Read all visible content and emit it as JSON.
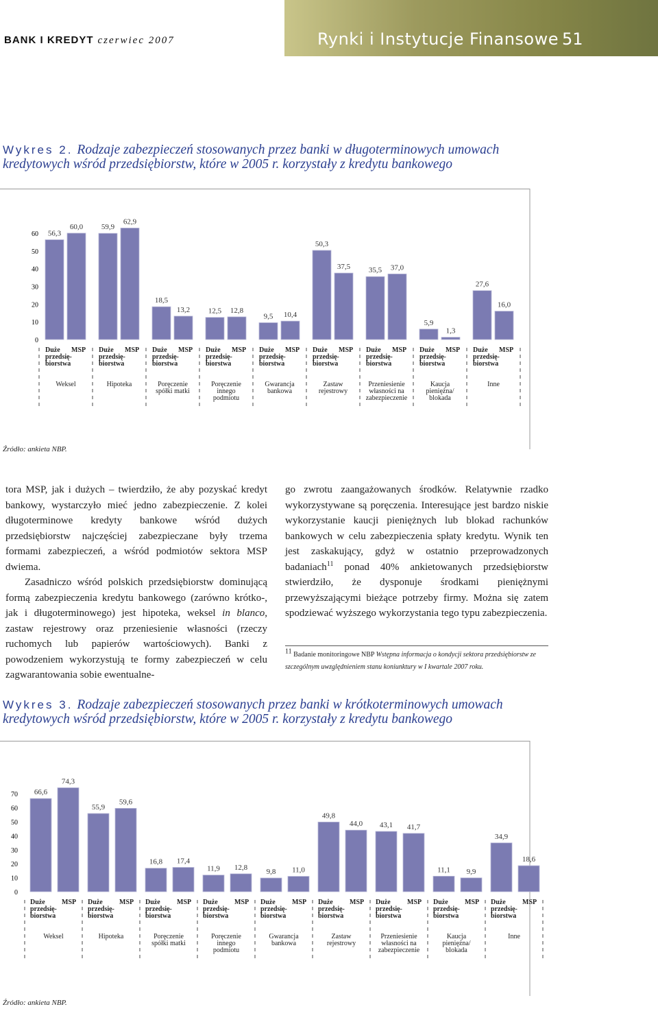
{
  "header": {
    "journal": "BANK I KREDYT",
    "issue": "czerwiec 2007",
    "section": "Rynki i Instytucje Finansowe",
    "page": "51"
  },
  "chart_data": [
    {
      "type": "bar",
      "label": "Wykres 2.",
      "title": "Rodzaje zabezpieczeń stosowanych przez banki w długoterminowych umowach kredytowych wśród przedsiębiorstw, które w 2005 r. korzystały z kredytu bankowego",
      "categories": [
        "Weksel",
        "Hipoteka",
        "Poręczenie spółki matki",
        "Poręczenie innego podmiotu",
        "Gwarancja bankowa",
        "Zastaw rejestrowy",
        "Przeniesienie własności na zabezpieczenie",
        "Kaucja pieniężna/ blokada",
        "Inne"
      ],
      "series": [
        {
          "name": "Duże przedsię-biorstwa",
          "color": "#7b7bb2",
          "values": [
            56.3,
            59.9,
            18.5,
            12.5,
            9.5,
            50.3,
            35.5,
            5.9,
            27.6
          ],
          "value_labels": [
            "56,3",
            "59,9",
            "18,5",
            "12,5",
            "9,5",
            "50,3",
            "35,5",
            "5,9",
            "27,6"
          ]
        },
        {
          "name": "MSP",
          "color": "#7b7bb2",
          "values": [
            60.0,
            62.9,
            13.2,
            12.8,
            10.4,
            37.5,
            37.0,
            1.3,
            16.0
          ],
          "value_labels": [
            "60,0",
            "62,9",
            "13,2",
            "12,8",
            "10,4",
            "37,5",
            "37,0",
            "1,3",
            "16,0"
          ]
        }
      ],
      "ylim": [
        0,
        65
      ],
      "yticks": [
        0,
        10,
        20,
        30,
        40,
        50,
        60
      ],
      "source": "Źródło: ankieta NBP."
    },
    {
      "type": "bar",
      "label": "Wykres 3.",
      "title": "Rodzaje zabezpieczeń stosowanych przez banki w krótkoterminowych umowach kredytowych wśród przedsiębiorstw, które w 2005 r. korzystały z kredytu bankowego",
      "categories": [
        "Weksel",
        "Hipoteka",
        "Poręczenie spółki matki",
        "Poręczenie innego podmiotu",
        "Gwarancja bankowa",
        "Zastaw rejestrowy",
        "Przeniesienie własności na zabezpieczenie",
        "Kaucja pieniężna/ blokada",
        "Inne"
      ],
      "series": [
        {
          "name": "Duże przedsię-biorstwa",
          "color": "#7b7bb2",
          "values": [
            66.6,
            55.9,
            16.8,
            11.9,
            9.8,
            49.8,
            43.1,
            11.1,
            34.9
          ],
          "value_labels": [
            "66,6",
            "55,9",
            "16,8",
            "11,9",
            "9,8",
            "49,8",
            "43,1",
            "11,1",
            "34,9"
          ]
        },
        {
          "name": "MSP",
          "color": "#7b7bb2",
          "values": [
            74.3,
            59.6,
            17.4,
            12.8,
            11.0,
            44.0,
            41.7,
            9.9,
            18.6
          ],
          "value_labels": [
            "74,3",
            "59,6",
            "17,4",
            "12,8",
            "11,0",
            "44,0",
            "41,7",
            "9,9",
            "18,6"
          ]
        }
      ],
      "ylim": [
        0,
        75
      ],
      "yticks": [
        0,
        10,
        20,
        30,
        40,
        50,
        60,
        70
      ],
      "source": "Źródło: ankieta NBP."
    }
  ],
  "body": {
    "left": [
      [
        "tora MSP, jak i dużych – twierdziło, że aby pozyskać kredyt bankowy, wystarczyło mieć jedno zabezpieczenie. Z kolei długoterminowe kredyty bankowe wśród dużych przedsiębiorstw najczęściej zabezpieczane były trzema formami zabezpieczeń, a wśród podmiotów sektora MSP dwiema."
      ],
      [
        "Zasadniczo wśród polskich przedsiębiorstw dominującą formą zabezpieczenia kredytu bankowego (zarówno krótko-, jak i długoterminowego) jest hipoteka, weksel ",
        "in blanco",
        ", zastaw rejestrowy oraz przeniesienie własności (rzeczy ruchomych lub papierów wartościowych). Banki z powodzeniem wykorzystują te formy zabezpieczeń w celu zagwarantowania sobie ewentualne-"
      ]
    ],
    "right": [
      [
        "go zwrotu zaangażowanych środków. Relatywnie rzadko wykorzystywane są poręczenia. Interesujące jest bardzo niskie wykorzystanie kaucji pieniężnych lub blokad rachunków bankowych w celu zabezpieczenia spłaty kredytu. Wynik ten jest zaskakujący, gdyż w ostatnio przeprowadzonych badaniach",
        "11",
        " ponad 40% ankietowanych przedsiębiorstw stwierdziło, że dysponuje środkami pieniężnymi przewyższającymi bieżące potrzeby firmy. Można się zatem spodziewać wyższego wykorzystania tego typu zabezpieczenia."
      ]
    ]
  },
  "footnote": {
    "number": "11",
    "text": "Badanie monitoringowe NBP ",
    "italic": "Wstępna informacja o kondycji sektora przedsiębiorstw ze szczególnym uwzględnieniem stanu koniunktury w I kwartale 2007 roku."
  }
}
